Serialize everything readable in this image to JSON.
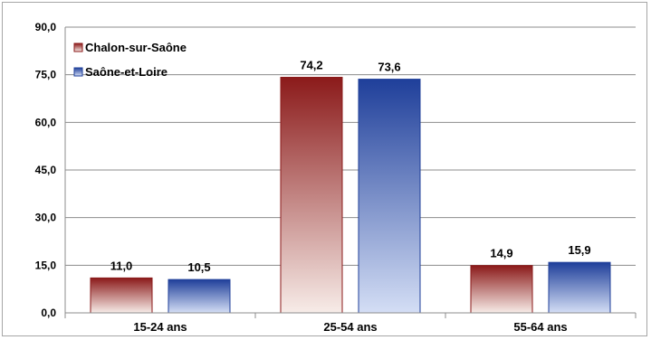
{
  "chart_data": {
    "type": "bar",
    "categories": [
      "15-24 ans",
      "25-54 ans",
      "55-64 ans"
    ],
    "series": [
      {
        "name": "Chalon-sur-Saône",
        "values": [
          11.0,
          74.2,
          14.9
        ],
        "labels": [
          "11,0",
          "74,2",
          "14,9"
        ],
        "color": "#8b1a1a",
        "light": "#f7ece8"
      },
      {
        "name": "Saône-et-Loire",
        "values": [
          10.5,
          73.6,
          15.9
        ],
        "labels": [
          "10,5",
          "73,6",
          "15,9"
        ],
        "color": "#1f3f9a",
        "light": "#d4def5"
      }
    ],
    "yticks": [
      "0,0",
      "15,0",
      "30,0",
      "45,0",
      "60,0",
      "75,0",
      "90,0"
    ],
    "ylim": [
      0,
      90
    ],
    "ystep": 15,
    "grid": true,
    "legend": "top-left",
    "title": "",
    "xlabel": "",
    "ylabel": ""
  }
}
